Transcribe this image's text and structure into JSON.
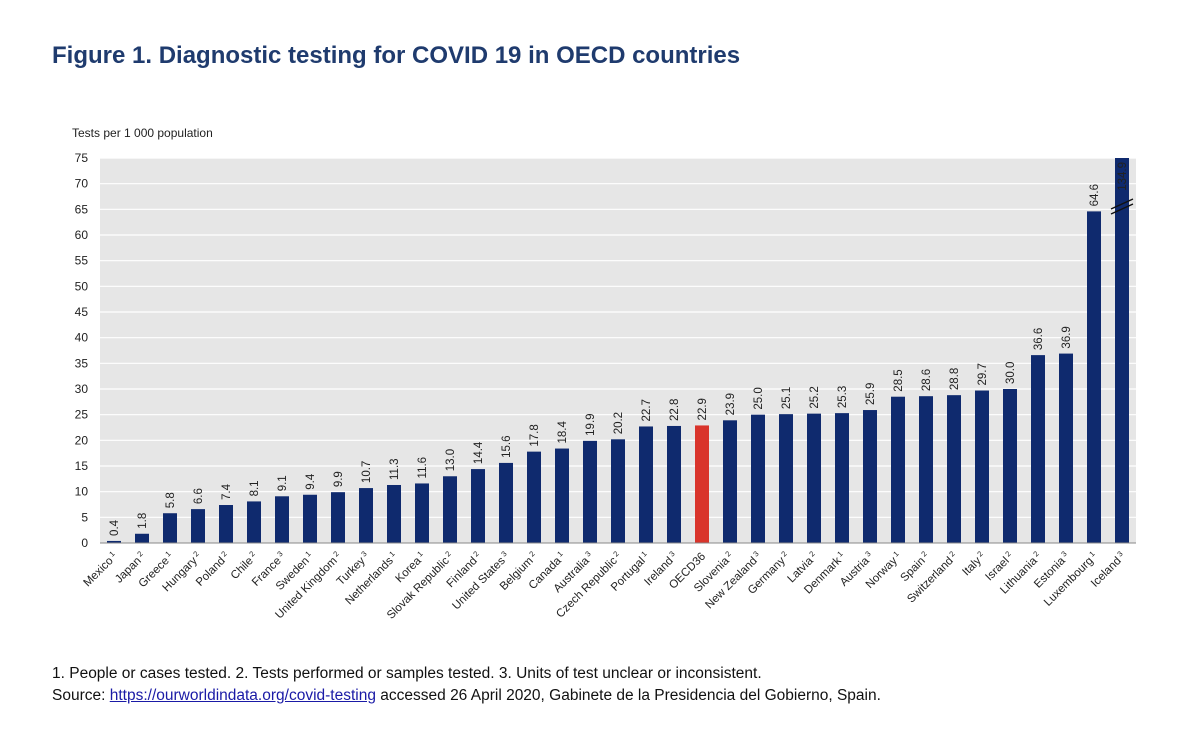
{
  "title": "Figure 1. Diagnostic testing for COVID 19 in OECD countries",
  "notes": {
    "line1": "1. People or cases tested. 2. Tests performed or samples tested. 3. Units of test unclear or inconsistent.",
    "source_prefix": "Source: ",
    "source_link": "https://ourworldindata.org/covid-testing",
    "source_suffix": " accessed 26 April 2020, Gabinete de la Presidencia del Gobierno, Spain."
  },
  "colors": {
    "bar": "#0f2a6e",
    "highlight": "#d9342b",
    "plot_background": "#e6e6e6",
    "grid": "#ffffff"
  },
  "chart_data": {
    "type": "bar",
    "title": "Figure 1. Diagnostic testing for COVID 19 in OECD countries",
    "ylabel": "Tests per 1 000 population",
    "ylim": [
      0,
      75
    ],
    "yticks": [
      0,
      5,
      10,
      15,
      20,
      25,
      30,
      35,
      40,
      45,
      50,
      55,
      60,
      65,
      70,
      75
    ],
    "grid": true,
    "categories": [
      "Mexico",
      "Japan",
      "Greece",
      "Hungary",
      "Poland",
      "Chile",
      "France",
      "Sweden",
      "United Kingdom",
      "Turkey",
      "Netherlands",
      "Korea",
      "Slovak Republic",
      "Finland",
      "United States",
      "Belgium",
      "Canada",
      "Australia",
      "Czech Republic",
      "Portugal",
      "Ireland",
      "OECD36",
      "Slovenia",
      "New Zealand",
      "Germany",
      "Latvia",
      "Denmark",
      "Austria",
      "Norway",
      "Spain",
      "Switzerland",
      "Italy",
      "Israel",
      "Lithuania",
      "Estonia",
      "Luxembourg",
      "Iceland"
    ],
    "footnotes": [
      "1",
      "2",
      "1",
      "2",
      "2",
      "2",
      "3",
      "1",
      "2",
      "3",
      "1",
      "1",
      "2",
      "2",
      "3",
      "2",
      "1",
      "3",
      "2",
      "1",
      "3",
      "",
      "2",
      "3",
      "2",
      "2",
      "1",
      "3",
      "1",
      "2",
      "2",
      "2",
      "2",
      "2",
      "3",
      "1",
      "3"
    ],
    "values": [
      0.4,
      1.8,
      5.8,
      6.6,
      7.4,
      8.1,
      9.1,
      9.4,
      9.9,
      10.7,
      11.3,
      11.6,
      13.0,
      14.4,
      15.6,
      17.8,
      18.4,
      19.9,
      20.2,
      22.7,
      22.8,
      22.9,
      23.9,
      25.0,
      25.1,
      25.2,
      25.3,
      25.9,
      28.5,
      28.6,
      28.8,
      29.7,
      30.0,
      36.6,
      36.9,
      64.6,
      134.9
    ],
    "value_labels": [
      "0.4",
      "1.8",
      "5.8",
      "6.6",
      "7.4",
      "8.1",
      "9.1",
      "9.4",
      "9.9",
      "10.7",
      "11.3",
      "11.6",
      "13.0",
      "14.4",
      "15.6",
      "17.8",
      "18.4",
      "19.9",
      "20.2",
      "22.7",
      "22.8",
      "22.9",
      "23.9",
      "25.0",
      "25.1",
      "25.2",
      "25.3",
      "25.9",
      "28.5",
      "28.6",
      "28.8",
      "29.7",
      "30.0",
      "36.6",
      "36.9",
      "64.6",
      "134.9"
    ],
    "highlight": "OECD36",
    "axis_break": "Iceland"
  }
}
